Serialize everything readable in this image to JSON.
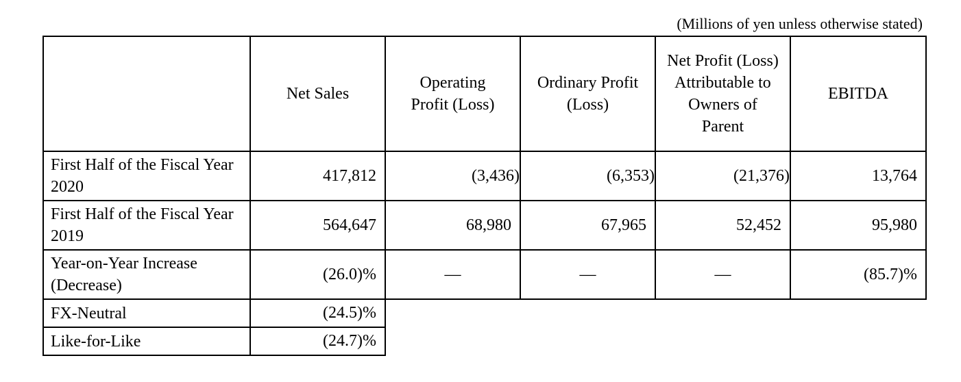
{
  "note": "(Millions of yen unless otherwise stated)",
  "columns": {
    "net_sales": "Net Sales",
    "operating_profit": "Operating Profit (Loss)",
    "ordinary_profit": "Ordinary Profit (Loss)",
    "net_profit": "Net Profit (Loss) Attributable to Owners of Parent",
    "ebitda": "EBITDA"
  },
  "rows": [
    {
      "label": "First Half of the Fiscal Year 2020",
      "net_sales": "417,812",
      "operating_profit": "(3,436)",
      "ordinary_profit": "(6,353)",
      "net_profit": "(21,376)",
      "ebitda": "13,764"
    },
    {
      "label": "First Half of the Fiscal Year 2019",
      "net_sales": "564,647",
      "operating_profit": "68,980",
      "ordinary_profit": "67,965",
      "net_profit": "52,452",
      "ebitda": "95,980"
    },
    {
      "label": "Year-on-Year Increase (Decrease)",
      "net_sales": "(26.0)%",
      "operating_profit": "—",
      "ordinary_profit": "—",
      "net_profit": "—",
      "ebitda": "(85.7)%"
    },
    {
      "label": "FX-Neutral",
      "net_sales": "(24.5)%"
    },
    {
      "label": "Like-for-Like",
      "net_sales": "(24.7)%"
    }
  ]
}
